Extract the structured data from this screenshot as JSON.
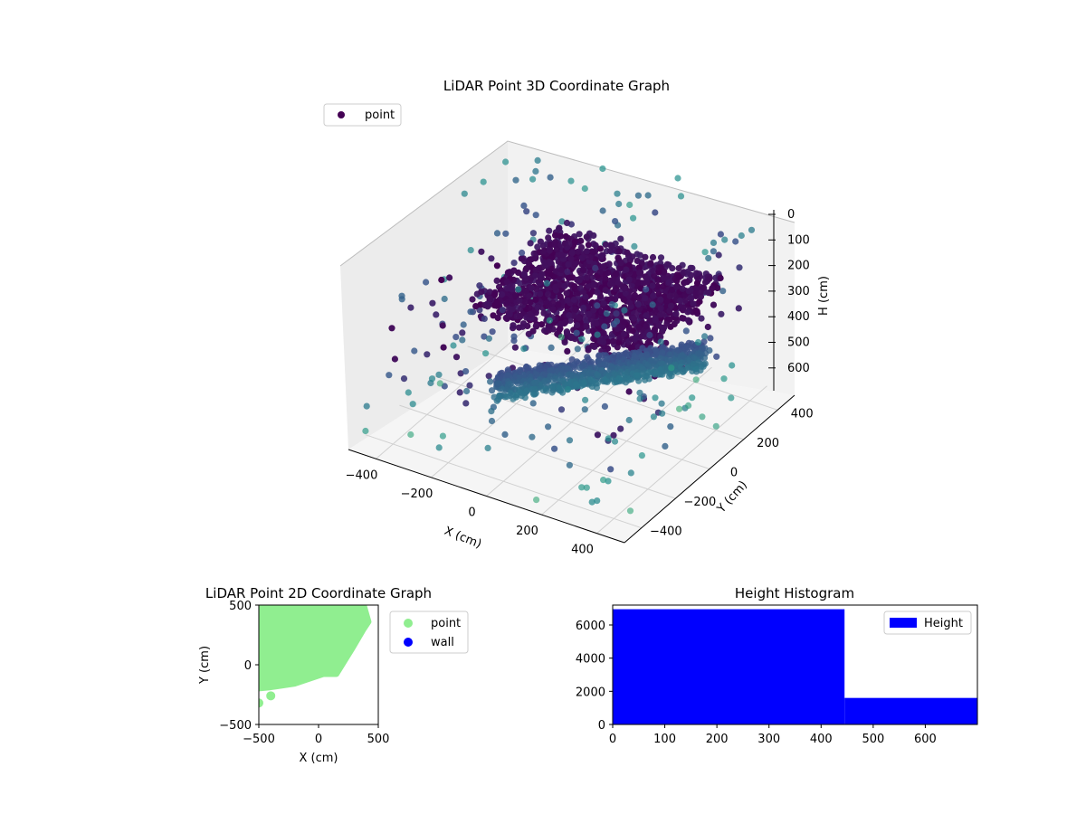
{
  "chart_data": [
    {
      "type": "scatter",
      "projection": "3d",
      "title": "LiDAR Point 3D Coordinate Graph",
      "xlabel": "X (cm)",
      "ylabel": "Y (cm)",
      "zlabel": "H (cm)",
      "xlim": [
        -500,
        500
      ],
      "ylim": [
        -500,
        500
      ],
      "zlim": [
        0,
        650
      ],
      "z_inverted": true,
      "xticks": [
        "−400",
        "−200",
        "0",
        "200",
        "400"
      ],
      "yticks": [
        "−400",
        "−200",
        "0",
        "200",
        "400"
      ],
      "zticks": [
        "0",
        "100",
        "200",
        "300",
        "400",
        "500",
        "600"
      ],
      "grid": true,
      "colormap": "viridis",
      "legend": {
        "position": "top-left",
        "entries": [
          {
            "label": "point",
            "color": "#440154"
          }
        ]
      },
      "series": [
        {
          "name": "point",
          "clusters": [
            {
              "desc": "upper dense band",
              "x": [
                -300,
                300
              ],
              "y": [
                -100,
                400
              ],
              "h": [
                250,
                330
              ]
            },
            {
              "desc": "lower dense band",
              "x": [
                -150,
                300
              ],
              "y": [
                -200,
                300
              ],
              "h": [
                430,
                520
              ]
            }
          ],
          "points": [
            [
              -250,
              -350,
              600
            ],
            [
              150,
              -450,
              640
            ],
            [
              300,
              -300,
              600
            ],
            [
              350,
              200,
              620
            ],
            [
              -100,
              400,
              480
            ],
            [
              200,
              350,
              450
            ],
            [
              -300,
              100,
              150
            ],
            [
              400,
              350,
              60
            ],
            [
              420,
              -100,
              480
            ],
            [
              -200,
              300,
              350
            ],
            [
              0,
              450,
              100
            ],
            [
              250,
              -150,
              560
            ],
            [
              100,
              200,
              20
            ],
            [
              -50,
              350,
              60
            ],
            [
              150,
              400,
              30
            ],
            [
              350,
              100,
              540
            ]
          ]
        }
      ]
    },
    {
      "type": "scatter",
      "title": "LiDAR Point 2D Coordinate Graph",
      "xlabel": "X (cm)",
      "ylabel": "Y (cm)",
      "xlim": [
        -500,
        500
      ],
      "ylim": [
        -500,
        500
      ],
      "xticks": [
        "−500",
        "0",
        "500"
      ],
      "yticks": [
        "−500",
        "0",
        "500"
      ],
      "legend": {
        "position": "outside-right",
        "entries": [
          {
            "label": "point",
            "color": "#90ee90"
          },
          {
            "label": "wall",
            "color": "#0000ff"
          }
        ]
      },
      "series": [
        {
          "name": "point",
          "color": "#90ee90",
          "outline": [
            [
              -490,
              500
            ],
            [
              380,
              500
            ],
            [
              420,
              360
            ],
            [
              380,
              300
            ],
            [
              280,
              130
            ],
            [
              150,
              -80
            ],
            [
              40,
              -80
            ],
            [
              -200,
              -160
            ],
            [
              -400,
              -190
            ],
            [
              -500,
              -200
            ]
          ],
          "points": [
            [
              -500,
              -320
            ],
            [
              -400,
              -260
            ],
            [
              -470,
              320
            ],
            [
              400,
              360
            ],
            [
              -480,
              -170
            ],
            [
              -350,
              -150
            ]
          ]
        },
        {
          "name": "wall",
          "color": "#0000ff",
          "points": []
        }
      ]
    },
    {
      "type": "bar",
      "title": "Height Histogram",
      "xlim": [
        0,
        700
      ],
      "ylim": [
        0,
        7200
      ],
      "xticks": [
        "0",
        "100",
        "200",
        "300",
        "400",
        "500",
        "600"
      ],
      "yticks": [
        "0",
        "2000",
        "4000",
        "6000"
      ],
      "legend": {
        "position": "top-right",
        "entries": [
          {
            "label": "Height",
            "color": "#0000ff"
          }
        ]
      },
      "series": [
        {
          "name": "Height",
          "color": "#0000ff",
          "bins": [
            {
              "x0": 0,
              "x1": 445,
              "value": 6950
            },
            {
              "x0": 445,
              "x1": 700,
              "value": 1600
            }
          ]
        }
      ]
    }
  ]
}
